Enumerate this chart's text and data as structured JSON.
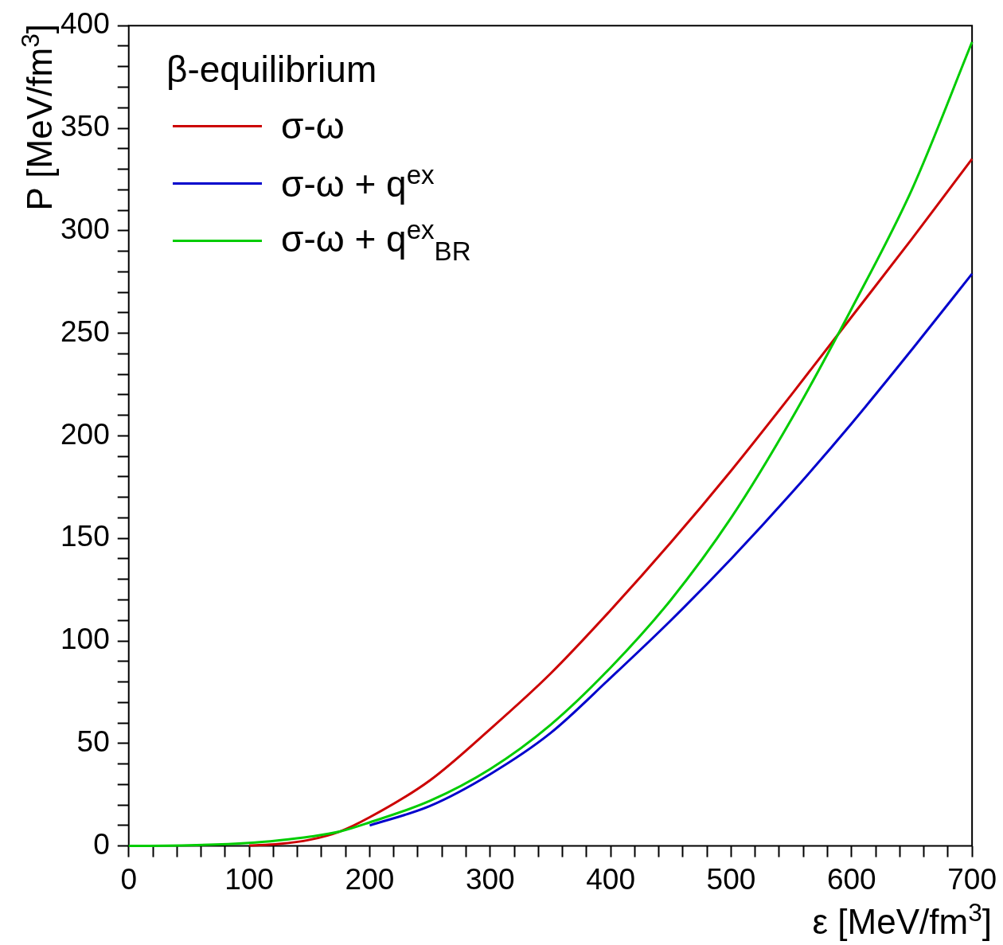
{
  "chart_data": {
    "type": "line",
    "xlabel": "ε [MeV/fm$^{3}$]",
    "ylabel": "P [MeV/fm$^{3}$]",
    "legend_title": "β-equilibrium",
    "legend": "top left",
    "grid": false,
    "marker": "none",
    "line_style": "solid",
    "xlim": [
      0,
      700
    ],
    "ylim": [
      0,
      400
    ],
    "xticks": [
      0,
      {
        "value": 20,
        "label": null
      },
      {
        "value": 40,
        "label": null
      },
      {
        "value": 60,
        "label": null
      },
      {
        "value": 80,
        "label": null
      },
      100,
      {
        "value": 120,
        "label": null
      },
      {
        "value": 140,
        "label": null
      },
      {
        "value": 160,
        "label": null
      },
      {
        "value": 180,
        "label": null
      },
      200,
      {
        "value": 220,
        "label": null
      },
      {
        "value": 240,
        "label": null
      },
      {
        "value": 260,
        "label": null
      },
      {
        "value": 280,
        "label": null
      },
      300,
      {
        "value": 320,
        "label": null
      },
      {
        "value": 340,
        "label": null
      },
      {
        "value": 360,
        "label": null
      },
      {
        "value": 380,
        "label": null
      },
      400,
      {
        "value": 420,
        "label": null
      },
      {
        "value": 440,
        "label": null
      },
      {
        "value": 460,
        "label": null
      },
      {
        "value": 480,
        "label": null
      },
      500,
      {
        "value": 520,
        "label": null
      },
      {
        "value": 540,
        "label": null
      },
      {
        "value": 560,
        "label": null
      },
      {
        "value": 580,
        "label": null
      },
      600,
      {
        "value": 620,
        "label": null
      },
      {
        "value": 640,
        "label": null
      },
      {
        "value": 660,
        "label": null
      },
      {
        "value": 680,
        "label": null
      },
      700
    ],
    "yticks": [
      0,
      {
        "value": 10,
        "label": null
      },
      {
        "value": 20,
        "label": null
      },
      {
        "value": 30,
        "label": null
      },
      {
        "value": 40,
        "label": null
      },
      50,
      {
        "value": 60,
        "label": null
      },
      {
        "value": 70,
        "label": null
      },
      {
        "value": 80,
        "label": null
      },
      {
        "value": 90,
        "label": null
      },
      100,
      {
        "value": 110,
        "label": null
      },
      {
        "value": 120,
        "label": null
      },
      {
        "value": 130,
        "label": null
      },
      {
        "value": 140,
        "label": null
      },
      150,
      {
        "value": 160,
        "label": null
      },
      {
        "value": 170,
        "label": null
      },
      {
        "value": 180,
        "label": null
      },
      {
        "value": 190,
        "label": null
      },
      200,
      {
        "value": 210,
        "label": null
      },
      {
        "value": 220,
        "label": null
      },
      {
        "value": 230,
        "label": null
      },
      {
        "value": 240,
        "label": null
      },
      250,
      {
        "value": 260,
        "label": null
      },
      {
        "value": 270,
        "label": null
      },
      {
        "value": 280,
        "label": null
      },
      {
        "value": 290,
        "label": null
      },
      300,
      {
        "value": 310,
        "label": null
      },
      {
        "value": 320,
        "label": null
      },
      {
        "value": 330,
        "label": null
      },
      {
        "value": 340,
        "label": null
      },
      350,
      {
        "value": 360,
        "label": null
      },
      {
        "value": 370,
        "label": null
      },
      {
        "value": 380,
        "label": null
      },
      {
        "value": 390,
        "label": null
      },
      400
    ],
    "x": [
      0,
      50,
      100,
      125,
      150,
      175,
      200,
      250,
      300,
      350,
      400,
      450,
      500,
      550,
      600,
      650,
      700
    ],
    "series": [
      {
        "name": "σ-ω",
        "color": "#cc0000",
        "values": [
          null,
          null,
          0.2,
          1,
          3,
          7,
          14,
          32,
          57,
          84,
          115,
          148,
          183,
          220,
          258,
          296,
          335
        ]
      },
      {
        "name": "σ-ω + q$^{ex}$",
        "color": "#0000cc",
        "values": [
          null,
          null,
          null,
          null,
          null,
          null,
          10,
          19.5,
          35,
          55,
          82,
          110,
          140,
          172,
          206,
          242,
          279
        ]
      },
      {
        "name": "σ-ω + q$^{ex}$$_{BR}$",
        "color": "#00cc00",
        "values": [
          0,
          0.3,
          1.5,
          2.8,
          4.5,
          7,
          11.5,
          22,
          37.5,
          59,
          87,
          120,
          160,
          208,
          262,
          320,
          392
        ]
      }
    ]
  }
}
